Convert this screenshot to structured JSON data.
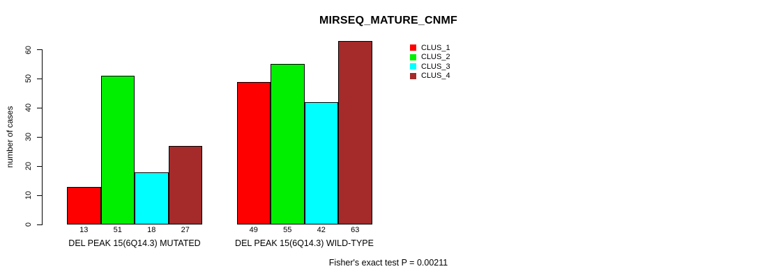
{
  "chart_data": {
    "type": "bar",
    "title": "MIRSEQ_MATURE_CNMF",
    "ylabel": "number of cases",
    "xlabel": "",
    "ylim": [
      0,
      63
    ],
    "yticks": [
      0,
      10,
      20,
      30,
      40,
      50,
      60
    ],
    "grid": false,
    "legend_position": "top-right",
    "bar_value_labels_shown": true,
    "categories": [
      "DEL PEAK 15(6Q14.3) MUTATED",
      "DEL PEAK 15(6Q14.3) WILD-TYPE"
    ],
    "series": [
      {
        "name": "CLUS_1",
        "color": "#FF0000",
        "values": [
          13,
          49
        ]
      },
      {
        "name": "CLUS_2",
        "color": "#00EE00",
        "values": [
          51,
          55
        ]
      },
      {
        "name": "CLUS_3",
        "color": "#00FFFF",
        "values": [
          18,
          42
        ]
      },
      {
        "name": "CLUS_4",
        "color": "#A52A2A",
        "values": [
          27,
          63
        ]
      }
    ],
    "annotation": "Fisher's exact test P = 0.00211"
  },
  "colors": {
    "background": "#FFFFFF",
    "axis": "#000000",
    "bar_border": "#000000"
  }
}
